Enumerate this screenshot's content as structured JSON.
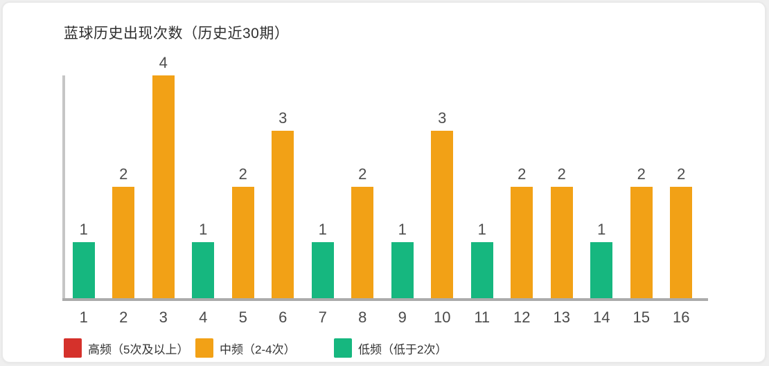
{
  "chart_data": {
    "type": "bar",
    "title": "蓝球历史出现次数（历史近30期）",
    "categories": [
      "1",
      "2",
      "3",
      "4",
      "5",
      "6",
      "7",
      "8",
      "9",
      "10",
      "11",
      "12",
      "13",
      "14",
      "15",
      "16"
    ],
    "values": [
      1,
      2,
      4,
      1,
      2,
      3,
      1,
      2,
      1,
      3,
      1,
      2,
      2,
      1,
      2,
      2
    ],
    "bar_levels": [
      "low",
      "mid",
      "mid",
      "low",
      "mid",
      "mid",
      "low",
      "mid",
      "low",
      "mid",
      "low",
      "mid",
      "mid",
      "low",
      "mid",
      "mid"
    ],
    "value_labels_shown": true,
    "xlabel": "",
    "ylabel": "",
    "ylim": [
      0,
      4
    ],
    "grid": false,
    "legend_position": "bottom-left",
    "levels": [
      {
        "id": "high",
        "label": "高频（5次及以上）",
        "color": "#d5312b"
      },
      {
        "id": "mid",
        "label": "中频（2-4次）",
        "color": "#f2a116"
      },
      {
        "id": "low",
        "label": "低频（低于2次）",
        "color": "#16b77f"
      }
    ],
    "axis_color": "#ababab",
    "label_color": "#4d4d4d",
    "title_color": "#2f2f2f"
  }
}
